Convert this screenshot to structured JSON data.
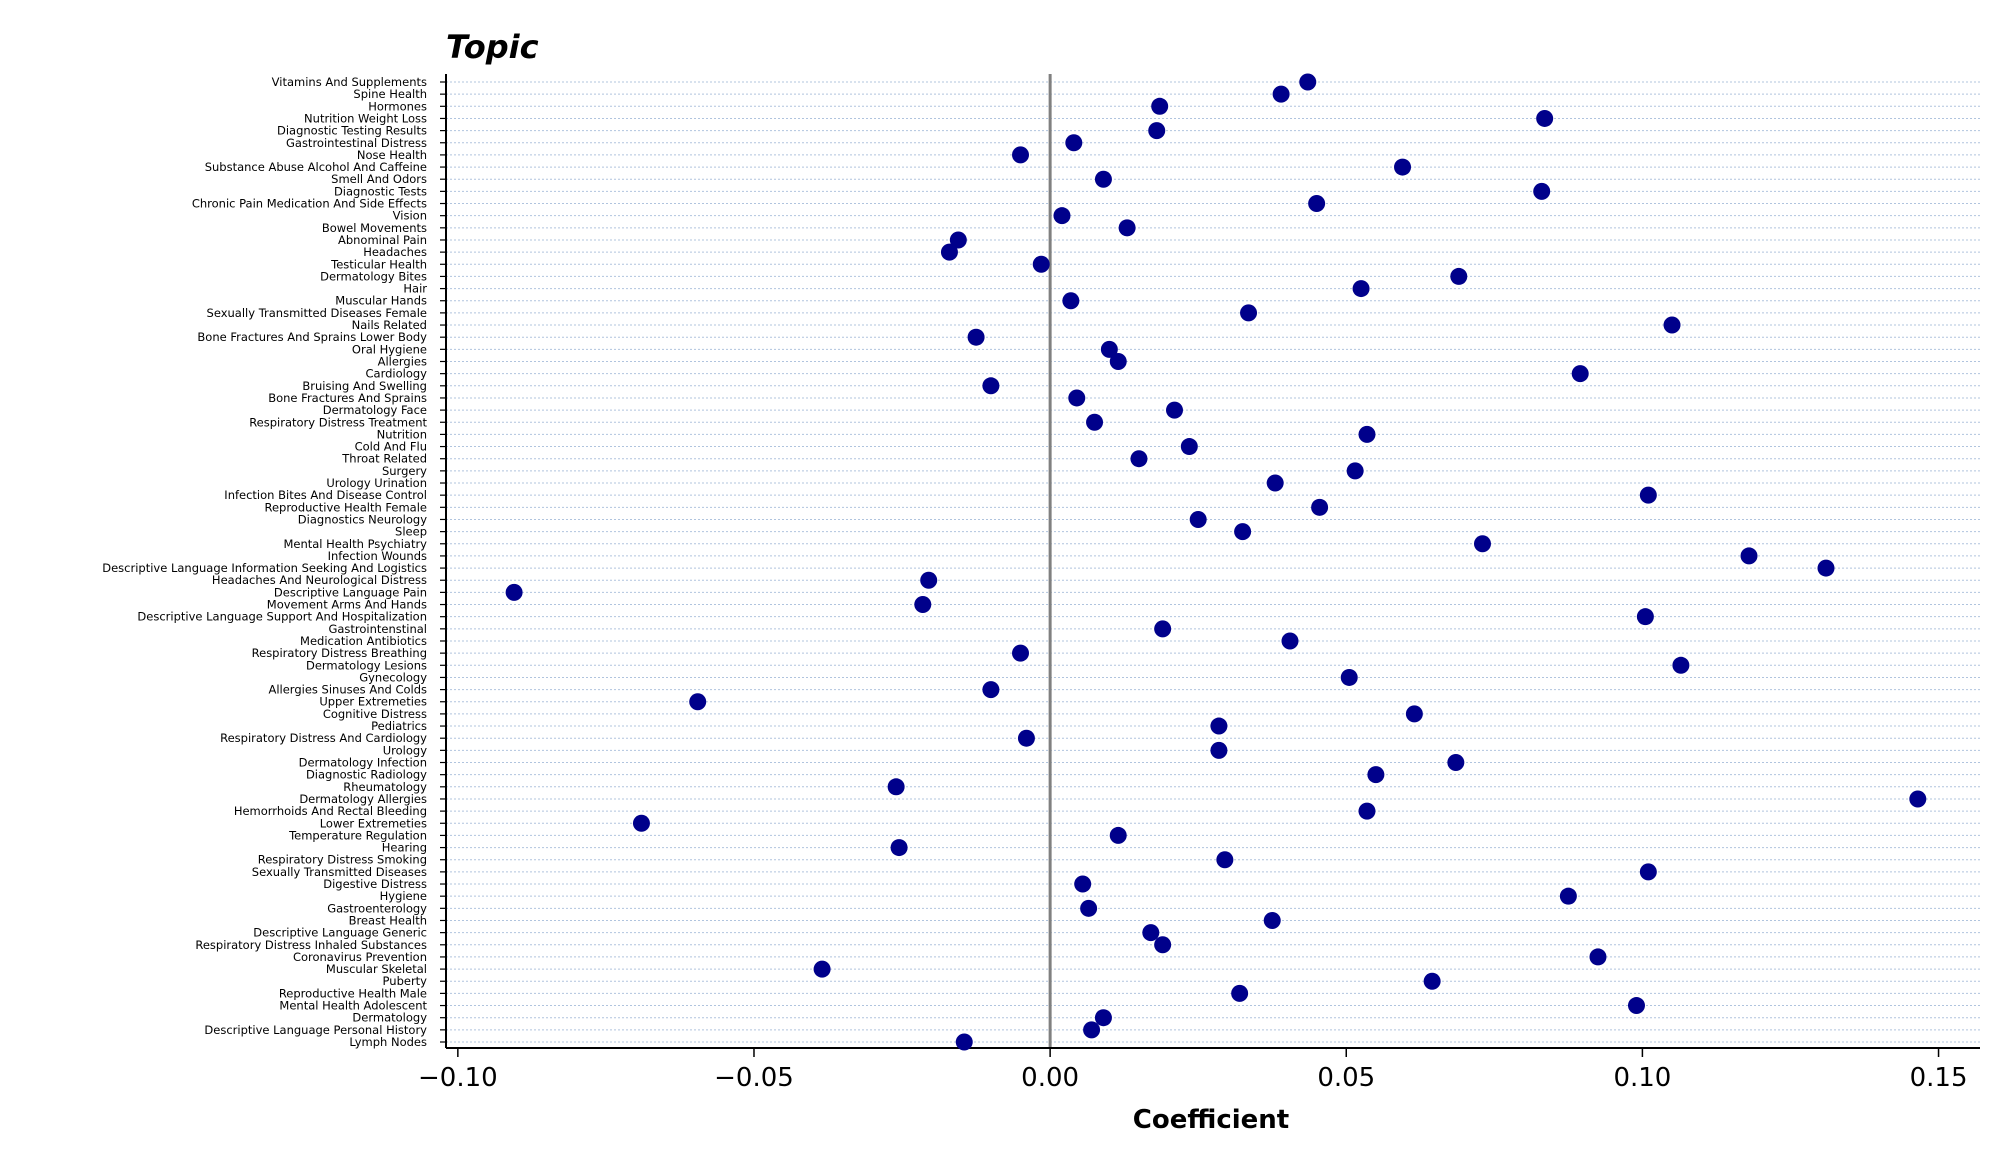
{
  "chart_data": {
    "type": "scatter",
    "title": "Topic",
    "xlabel": "Coefficient",
    "ylabel": "",
    "xlim": [
      -0.102,
      0.157
    ],
    "xticks": [
      -0.1,
      -0.05,
      0.0,
      0.05,
      0.1,
      0.15
    ],
    "xtick_labels": [
      "−0.10",
      "−0.05",
      "0.00",
      "0.05",
      "0.10",
      "0.15"
    ],
    "zero_line": true,
    "grid": "horizontal dotted",
    "colors": {
      "point": "#00008b",
      "zero_line": "#808080",
      "grid": "#b0c4de"
    },
    "categories": [
      "Vitamins And Supplements",
      "Spine Health",
      "Hormones",
      "Nutrition Weight Loss",
      "Diagnostic Testing Results",
      "Gastrointestinal Distress",
      "Nose Health",
      "Substance Abuse Alcohol And Caffeine",
      "Smell And Odors",
      "Diagnostic Tests",
      "Chronic Pain Medication And Side Effects",
      "Vision",
      "Bowel Movements",
      "Abnominal Pain",
      "Headaches",
      "Testicular Health",
      "Dermatology Bites",
      "Hair",
      "Muscular Hands",
      "Sexually Transmitted Diseases Female",
      "Nails Related",
      "Bone Fractures And Sprains Lower Body",
      "Oral Hygiene",
      "Allergies",
      "Cardiology",
      "Bruising And Swelling",
      "Bone Fractures And Sprains",
      "Dermatology Face",
      "Respiratory Distress Treatment",
      "Nutrition",
      "Cold And Flu",
      "Throat Related",
      "Surgery",
      "Urology Urination",
      "Infection Bites And Disease Control",
      "Reproductive Health Female",
      "Diagnostics Neurology",
      "Sleep",
      "Mental Health Psychiatry",
      "Infection Wounds",
      "Descriptive Language Information Seeking And Logistics",
      "Headaches And Neurological Distress",
      "Descriptive Language Pain",
      "Movement Arms And Hands",
      "Descriptive Language Support And Hospitalization",
      "Gastrointenstinal",
      "Medication Antibiotics",
      "Respiratory Distress Breathing",
      "Dermatology Lesions",
      "Gynecology",
      "Allergies Sinuses And Colds",
      "Upper Extremeties",
      "Cognitive Distress",
      "Pediatrics",
      "Respiratory Distress And Cardiology",
      "Urology",
      "Dermatology Infection",
      "Diagnostic Radiology",
      "Rheumatology",
      "Dermatology Allergies",
      "Hemorrhoids And Rectal Bleeding",
      "Lower Extremeties",
      "Temperature Regulation",
      "Hearing",
      "Respiratory Distress Smoking",
      "Sexually Transmitted Diseases",
      "Digestive Distress",
      "Hygiene",
      "Gastroenterology",
      "Breast Health",
      "Descriptive Language Generic",
      "Respiratory Distress Inhaled Substances",
      "Coronavirus Prevention",
      "Muscular Skeletal",
      "Puberty",
      "Reproductive Health Male",
      "Mental Health Adolescent",
      "Dermatology",
      "Descriptive Language Personal History",
      "Lymph Nodes"
    ],
    "values": [
      0.0435,
      0.039,
      0.0185,
      0.0835,
      0.018,
      0.004,
      -0.005,
      0.0595,
      0.009,
      0.083,
      0.045,
      0.002,
      0.013,
      -0.0155,
      -0.017,
      -0.0015,
      0.069,
      0.0525,
      0.0035,
      0.0335,
      0.105,
      -0.0125,
      0.01,
      0.0115,
      0.0895,
      -0.01,
      0.0045,
      0.021,
      0.0075,
      0.0535,
      0.0235,
      0.015,
      0.0515,
      0.038,
      0.101,
      0.0455,
      0.025,
      0.0325,
      0.073,
      0.118,
      0.131,
      -0.0205,
      -0.0905,
      -0.0215,
      0.1005,
      0.019,
      0.0405,
      -0.005,
      0.1065,
      0.0505,
      -0.01,
      -0.0595,
      0.0615,
      0.0285,
      -0.004,
      0.0285,
      0.0685,
      0.055,
      -0.026,
      0.1465,
      0.0535,
      -0.069,
      0.0115,
      -0.0255,
      0.0295,
      0.101,
      0.0055,
      0.0875,
      0.0065,
      0.0375,
      0.017,
      0.019,
      0.0925,
      -0.0385,
      0.0645,
      0.032,
      0.099,
      0.009,
      0.007,
      -0.0145
    ]
  }
}
